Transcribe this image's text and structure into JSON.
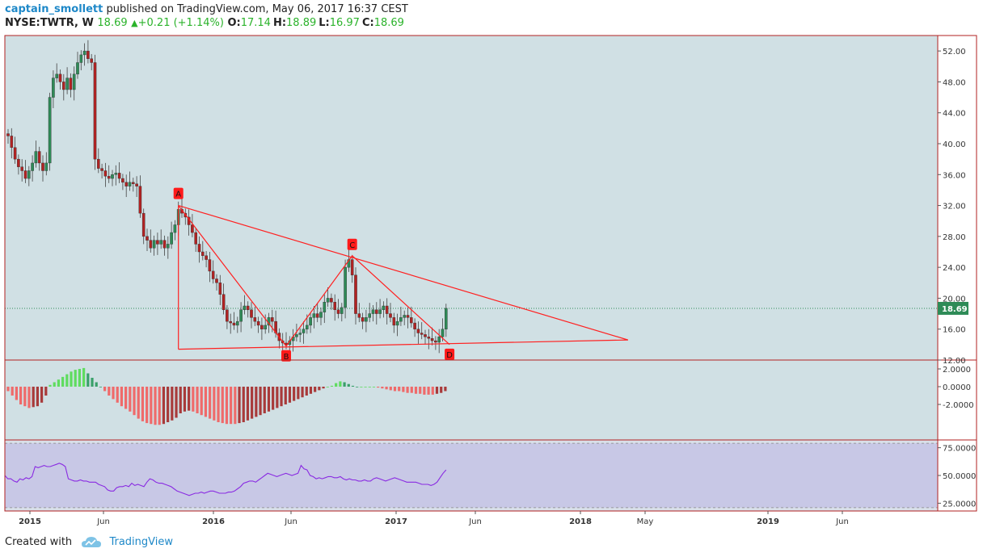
{
  "header": {
    "author": "captain_smollett",
    "published": "published on TradingView.com, May 06, 2017 16:37 CEST",
    "symbol": "NYSE:TWTR, W",
    "last": "18.69",
    "change": "+0.21 (+1.14%)",
    "o_label": "O:",
    "o_value": "17.14",
    "h_label": "H:",
    "h_value": "18.89",
    "l_label": "L:",
    "l_value": "16.97",
    "c_label": "C:",
    "c_value": "18.69"
  },
  "footer": {
    "created_with": "Created with",
    "brand": "TradingView"
  },
  "colors": {
    "up": "#2e8b57",
    "down": "#b22222",
    "pattern": "#ff2020",
    "panel_bg": "#d0e0e4",
    "rsi_bg": "#c8c8e6",
    "rsi_line": "#8a2be2",
    "macd_pos_strong": "#5fdc5f",
    "macd_pos_weak": "#3aa06a",
    "macd_neg_strong": "#ef6a6a",
    "macd_neg_weak": "#a83a3a"
  },
  "chart_data": [
    {
      "type": "candlestick",
      "title": "",
      "ylim": [
        12,
        54
      ],
      "y_ticks": [
        "52.00",
        "48.00",
        "44.00",
        "40.00",
        "36.00",
        "32.00",
        "28.00",
        "24.00",
        "20.00",
        "16.00",
        "12.00"
      ],
      "x_ticks": [
        "2015",
        "Jun",
        "2016",
        "Jun",
        "2017",
        "Jun",
        "2018",
        "May",
        "2019",
        "Jun"
      ],
      "last_price_label": "18.69",
      "last_price": 18.69,
      "closes": [
        41.0,
        39.5,
        38.0,
        37.0,
        36.5,
        35.5,
        36.5,
        37.5,
        39.0,
        37.5,
        36.5,
        37.5,
        46.0,
        48.5,
        49.0,
        48.0,
        47.0,
        48.5,
        47.0,
        49.0,
        50.5,
        51.5,
        52.0,
        51.0,
        50.5,
        38.0,
        36.8,
        36.5,
        35.8,
        35.5,
        36.0,
        36.2,
        35.5,
        35.0,
        34.5,
        35.0,
        34.8,
        34.5,
        31.0,
        28.0,
        27.5,
        26.5,
        27.5,
        27.0,
        27.5,
        26.5,
        27.0,
        28.5,
        29.5,
        31.5,
        31.0,
        30.5,
        29.5,
        28.5,
        27.0,
        26.0,
        25.5,
        25.0,
        23.5,
        22.5,
        22.0,
        20.5,
        18.5,
        17.0,
        16.8,
        16.5,
        17.0,
        18.5,
        19.0,
        18.5,
        17.5,
        17.0,
        16.5,
        16.0,
        16.5,
        17.5,
        17.0,
        15.5,
        14.5,
        14.2,
        14.0,
        14.5,
        15.0,
        15.3,
        15.5,
        16.0,
        16.5,
        17.5,
        18.0,
        17.5,
        18.2,
        19.5,
        20.0,
        19.5,
        18.5,
        18.0,
        18.8,
        24.0,
        25.0,
        23.0,
        18.0,
        17.5,
        17.0,
        17.5,
        18.0,
        18.5,
        18.0,
        18.5,
        19.0,
        18.0,
        17.5,
        16.5,
        17.0,
        17.5,
        17.8,
        17.5,
        16.8,
        16.0,
        15.5,
        15.3,
        15.0,
        14.8,
        14.5,
        14.3,
        15.0,
        16.0,
        18.69
      ],
      "pattern_points": [
        {
          "label": "A",
          "value": 32.0
        },
        {
          "label": "B",
          "value": 13.8
        },
        {
          "label": "C",
          "value": 25.5
        },
        {
          "label": "D",
          "value": 14.0
        }
      ]
    },
    {
      "type": "bar",
      "title": "",
      "ylim": [
        -6,
        3
      ],
      "y_ticks": [
        "2.0000",
        "0.0000",
        "-2.0000"
      ],
      "values": [
        -0.5,
        -1.0,
        -1.5,
        -2.0,
        -2.2,
        -2.4,
        -2.3,
        -2.2,
        -1.8,
        -1.0,
        0.2,
        0.5,
        0.8,
        1.1,
        1.4,
        1.7,
        1.9,
        2.0,
        2.1,
        1.5,
        1.0,
        0.5,
        0.0,
        -0.5,
        -1.0,
        -1.4,
        -1.8,
        -2.2,
        -2.5,
        -2.8,
        -3.2,
        -3.6,
        -3.9,
        -4.1,
        -4.2,
        -4.3,
        -4.3,
        -4.2,
        -4.0,
        -3.8,
        -3.5,
        -3.0,
        -2.8,
        -2.7,
        -2.8,
        -3.0,
        -3.2,
        -3.4,
        -3.6,
        -3.8,
        -4.0,
        -4.1,
        -4.2,
        -4.2,
        -4.2,
        -4.1,
        -4.0,
        -3.8,
        -3.6,
        -3.4,
        -3.2,
        -3.0,
        -2.8,
        -2.6,
        -2.4,
        -2.2,
        -2.0,
        -1.8,
        -1.6,
        -1.4,
        -1.2,
        -1.0,
        -0.8,
        -0.6,
        -0.4,
        -0.2,
        0.0,
        0.1,
        0.4,
        0.6,
        0.5,
        0.3,
        0.1,
        0.0,
        0.0,
        0.0,
        0.0,
        0.0,
        -0.1,
        -0.2,
        -0.3,
        -0.4,
        -0.5,
        -0.5,
        -0.6,
        -0.7,
        -0.7,
        -0.8,
        -0.8,
        -0.9,
        -0.9,
        -0.9,
        -0.8,
        -0.7,
        -0.5
      ]
    },
    {
      "type": "line",
      "title": "",
      "ylim": [
        18,
        82
      ],
      "y_ticks": [
        "75.0000",
        "50.0000",
        "25.0000"
      ],
      "values": [
        50,
        47,
        47,
        45,
        44,
        47,
        46,
        48,
        47,
        49,
        58,
        57,
        58,
        59,
        58,
        58,
        59,
        60,
        61,
        60,
        58,
        47,
        46,
        45,
        45,
        46,
        45,
        45,
        44,
        44,
        44,
        42,
        41,
        40,
        37,
        36,
        36,
        39,
        40,
        40,
        41,
        40,
        43,
        41,
        42,
        41,
        40,
        44,
        47,
        46,
        44,
        43,
        43,
        42,
        41,
        40,
        38,
        36,
        35,
        34,
        33,
        32,
        33,
        34,
        34,
        35,
        34,
        35,
        36,
        36,
        35,
        34,
        34,
        34,
        35,
        35,
        36,
        38,
        40,
        43,
        44,
        45,
        45,
        44,
        46,
        48,
        50,
        52,
        51,
        50,
        49,
        50,
        51,
        52,
        51,
        50,
        51,
        52,
        59,
        56,
        55,
        50,
        49,
        47,
        48,
        47,
        48,
        49,
        49,
        48,
        48,
        49,
        47,
        46,
        47,
        46,
        46,
        45,
        45,
        46,
        45,
        45,
        47,
        48,
        47,
        46,
        45,
        46,
        47,
        48,
        47,
        46,
        45,
        44,
        44,
        44,
        44,
        43,
        42,
        42,
        42,
        41,
        42,
        44,
        48,
        52,
        55
      ]
    }
  ]
}
